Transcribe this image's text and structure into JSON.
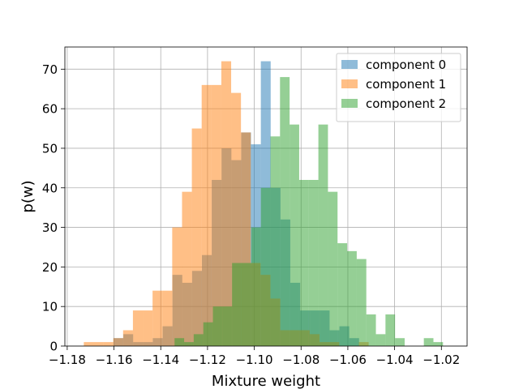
{
  "chart_data": {
    "type": "histogram",
    "title": "",
    "xlabel": "Mixture weight",
    "ylabel": "p(w)",
    "xlim": [
      -1.181,
      -1.009
    ],
    "ylim": [
      0,
      75.6
    ],
    "grid": true,
    "legend_position": "top-right",
    "x_ticks": [
      -1.18,
      -1.16,
      -1.14,
      -1.12,
      -1.1,
      -1.08,
      -1.06,
      -1.04,
      -1.02
    ],
    "x_tick_labels": [
      "−1.18",
      "−1.16",
      "−1.14",
      "−1.12",
      "−1.10",
      "−1.08",
      "−1.06",
      "−1.04",
      "−1.02"
    ],
    "y_ticks": [
      0,
      10,
      20,
      30,
      40,
      50,
      60,
      70
    ],
    "y_tick_labels": [
      "0",
      "10",
      "20",
      "30",
      "40",
      "50",
      "60",
      "70"
    ],
    "bar_opacity": 0.5,
    "series": [
      {
        "name": "component 0",
        "color": "#1f77b4",
        "bins": [
          {
            "x0": -1.1602,
            "x1": -1.156,
            "count": 2
          },
          {
            "x0": -1.156,
            "x1": -1.1518,
            "count": 3
          },
          {
            "x0": -1.1518,
            "x1": -1.1476,
            "count": 1
          },
          {
            "x0": -1.1476,
            "x1": -1.1434,
            "count": 1
          },
          {
            "x0": -1.1434,
            "x1": -1.1392,
            "count": 2
          },
          {
            "x0": -1.1392,
            "x1": -1.135,
            "count": 5
          },
          {
            "x0": -1.135,
            "x1": -1.1308,
            "count": 18
          },
          {
            "x0": -1.1308,
            "x1": -1.1266,
            "count": 16
          },
          {
            "x0": -1.1266,
            "x1": -1.1224,
            "count": 19
          },
          {
            "x0": -1.1224,
            "x1": -1.1182,
            "count": 23
          },
          {
            "x0": -1.1182,
            "x1": -1.114,
            "count": 42
          },
          {
            "x0": -1.114,
            "x1": -1.1098,
            "count": 50
          },
          {
            "x0": -1.1098,
            "x1": -1.1056,
            "count": 47
          },
          {
            "x0": -1.1056,
            "x1": -1.1014,
            "count": 54
          },
          {
            "x0": -1.1014,
            "x1": -1.0972,
            "count": 51
          },
          {
            "x0": -1.0972,
            "x1": -1.093,
            "count": 72
          },
          {
            "x0": -1.093,
            "x1": -1.0888,
            "count": 40
          },
          {
            "x0": -1.0888,
            "x1": -1.0846,
            "count": 32
          },
          {
            "x0": -1.0846,
            "x1": -1.0804,
            "count": 16
          },
          {
            "x0": -1.0804,
            "x1": -1.0762,
            "count": 9
          },
          {
            "x0": -1.0762,
            "x1": -1.072,
            "count": 9
          },
          {
            "x0": -1.072,
            "x1": -1.0678,
            "count": 9
          },
          {
            "x0": -1.0678,
            "x1": -1.0636,
            "count": 4
          },
          {
            "x0": -1.0636,
            "x1": -1.0594,
            "count": 5
          },
          {
            "x0": -1.0594,
            "x1": -1.0552,
            "count": 2
          }
        ]
      },
      {
        "name": "component 1",
        "color": "#ff7f0e",
        "bins": [
          {
            "x0": -1.1729,
            "x1": -1.1687,
            "count": 1
          },
          {
            "x0": -1.1687,
            "x1": -1.1645,
            "count": 1
          },
          {
            "x0": -1.1645,
            "x1": -1.1603,
            "count": 1
          },
          {
            "x0": -1.1603,
            "x1": -1.1561,
            "count": 2
          },
          {
            "x0": -1.1561,
            "x1": -1.1519,
            "count": 4
          },
          {
            "x0": -1.1519,
            "x1": -1.1477,
            "count": 9
          },
          {
            "x0": -1.1477,
            "x1": -1.1435,
            "count": 9
          },
          {
            "x0": -1.1435,
            "x1": -1.1393,
            "count": 14
          },
          {
            "x0": -1.1393,
            "x1": -1.1351,
            "count": 14
          },
          {
            "x0": -1.1351,
            "x1": -1.1309,
            "count": 30
          },
          {
            "x0": -1.1309,
            "x1": -1.1267,
            "count": 39
          },
          {
            "x0": -1.1267,
            "x1": -1.1225,
            "count": 55
          },
          {
            "x0": -1.1225,
            "x1": -1.1183,
            "count": 66
          },
          {
            "x0": -1.1183,
            "x1": -1.1141,
            "count": 66
          },
          {
            "x0": -1.1141,
            "x1": -1.1099,
            "count": 72
          },
          {
            "x0": -1.1099,
            "x1": -1.1057,
            "count": 64
          },
          {
            "x0": -1.1057,
            "x1": -1.1015,
            "count": 54
          },
          {
            "x0": -1.1015,
            "x1": -1.0973,
            "count": 21
          },
          {
            "x0": -1.0973,
            "x1": -1.0931,
            "count": 18
          },
          {
            "x0": -1.0931,
            "x1": -1.0889,
            "count": 12
          },
          {
            "x0": -1.0889,
            "x1": -1.0847,
            "count": 4
          },
          {
            "x0": -1.0847,
            "x1": -1.0805,
            "count": 4
          },
          {
            "x0": -1.0805,
            "x1": -1.0763,
            "count": 4
          },
          {
            "x0": -1.0763,
            "x1": -1.0721,
            "count": 3
          },
          {
            "x0": -1.0721,
            "x1": -1.0679,
            "count": 1
          },
          {
            "x0": -1.0679,
            "x1": -1.0637,
            "count": 1
          },
          {
            "x0": -1.0637,
            "x1": -1.0595,
            "count": 0
          },
          {
            "x0": -1.0595,
            "x1": -1.0553,
            "count": 0
          },
          {
            "x0": -1.0553,
            "x1": -1.0511,
            "count": 1
          }
        ]
      },
      {
        "name": "component 2",
        "color": "#2ca02c",
        "bins": [
          {
            "x0": -1.1341,
            "x1": -1.13,
            "count": 2
          },
          {
            "x0": -1.13,
            "x1": -1.1259,
            "count": 1
          },
          {
            "x0": -1.1259,
            "x1": -1.1218,
            "count": 3
          },
          {
            "x0": -1.1218,
            "x1": -1.1177,
            "count": 6
          },
          {
            "x0": -1.1177,
            "x1": -1.1136,
            "count": 10
          },
          {
            "x0": -1.1136,
            "x1": -1.1095,
            "count": 10
          },
          {
            "x0": -1.1095,
            "x1": -1.1054,
            "count": 21
          },
          {
            "x0": -1.1054,
            "x1": -1.1013,
            "count": 21
          },
          {
            "x0": -1.1013,
            "x1": -1.0972,
            "count": 30
          },
          {
            "x0": -1.0972,
            "x1": -1.0931,
            "count": 40
          },
          {
            "x0": -1.0931,
            "x1": -1.089,
            "count": 53
          },
          {
            "x0": -1.089,
            "x1": -1.0849,
            "count": 68
          },
          {
            "x0": -1.0849,
            "x1": -1.0808,
            "count": 56
          },
          {
            "x0": -1.0808,
            "x1": -1.0767,
            "count": 42
          },
          {
            "x0": -1.0767,
            "x1": -1.0726,
            "count": 42
          },
          {
            "x0": -1.0726,
            "x1": -1.0685,
            "count": 56
          },
          {
            "x0": -1.0685,
            "x1": -1.0644,
            "count": 39
          },
          {
            "x0": -1.0644,
            "x1": -1.0603,
            "count": 26
          },
          {
            "x0": -1.0603,
            "x1": -1.0562,
            "count": 24
          },
          {
            "x0": -1.0562,
            "x1": -1.0521,
            "count": 22
          },
          {
            "x0": -1.0521,
            "x1": -1.048,
            "count": 8
          },
          {
            "x0": -1.048,
            "x1": -1.0439,
            "count": 3
          },
          {
            "x0": -1.0439,
            "x1": -1.0398,
            "count": 8
          },
          {
            "x0": -1.0398,
            "x1": -1.0357,
            "count": 2
          },
          {
            "x0": -1.0357,
            "x1": -1.0316,
            "count": 0
          },
          {
            "x0": -1.0316,
            "x1": -1.0275,
            "count": 0
          },
          {
            "x0": -1.0275,
            "x1": -1.0234,
            "count": 2
          },
          {
            "x0": -1.0234,
            "x1": -1.0193,
            "count": 1
          }
        ]
      }
    ]
  }
}
